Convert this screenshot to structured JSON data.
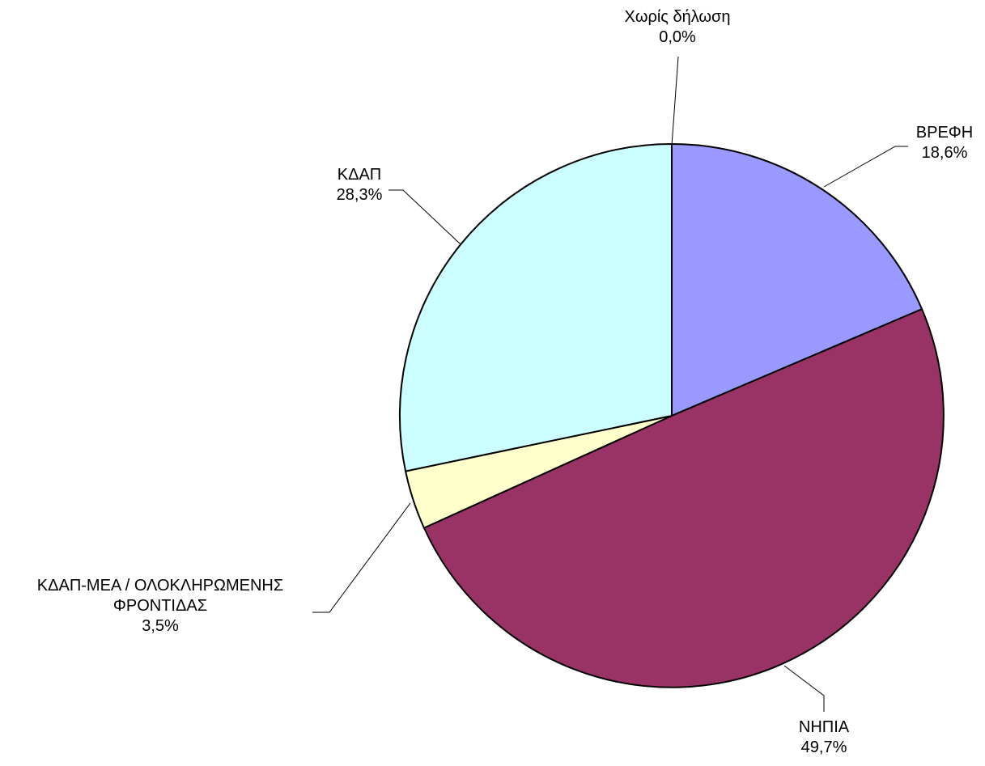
{
  "chart_data": {
    "type": "pie",
    "title": "",
    "slices": [
      {
        "name": "ΒΡΕΦΗ",
        "name_lines": [
          "ΒΡΕΦΗ"
        ],
        "value": 18.6,
        "value_label": "18,6%",
        "color": "#9999ff"
      },
      {
        "name": "ΝΗΠΙΑ",
        "name_lines": [
          "ΝΗΠΙΑ"
        ],
        "value": 49.7,
        "value_label": "49,7%",
        "color": "#993366"
      },
      {
        "name": "ΚΔΑΠ-ΜΕΑ / ΟΛΟΚΛΗΡΩΜΕΝΗΣ ΦΡΟΝΤΙΔΑΣ",
        "name_lines": [
          "ΚΔΑΠ-ΜΕΑ / ΟΛΟΚΛΗΡΩΜΕΝΗΣ",
          "ΦΡΟΝΤΙΔΑΣ"
        ],
        "value": 3.5,
        "value_label": "3,5%",
        "color": "#ffffcc"
      },
      {
        "name": "ΚΔΑΠ",
        "name_lines": [
          "ΚΔΑΠ"
        ],
        "value": 28.3,
        "value_label": "28,3%",
        "color": "#ccffff"
      },
      {
        "name": "Χωρίς δήλωση",
        "name_lines": [
          "Χωρίς δήλωση"
        ],
        "value": 0.0,
        "value_label": "0,0%",
        "color": "#ffffff"
      }
    ],
    "start_angle": "12 o'clock",
    "direction": "clockwise",
    "legend": "none"
  }
}
